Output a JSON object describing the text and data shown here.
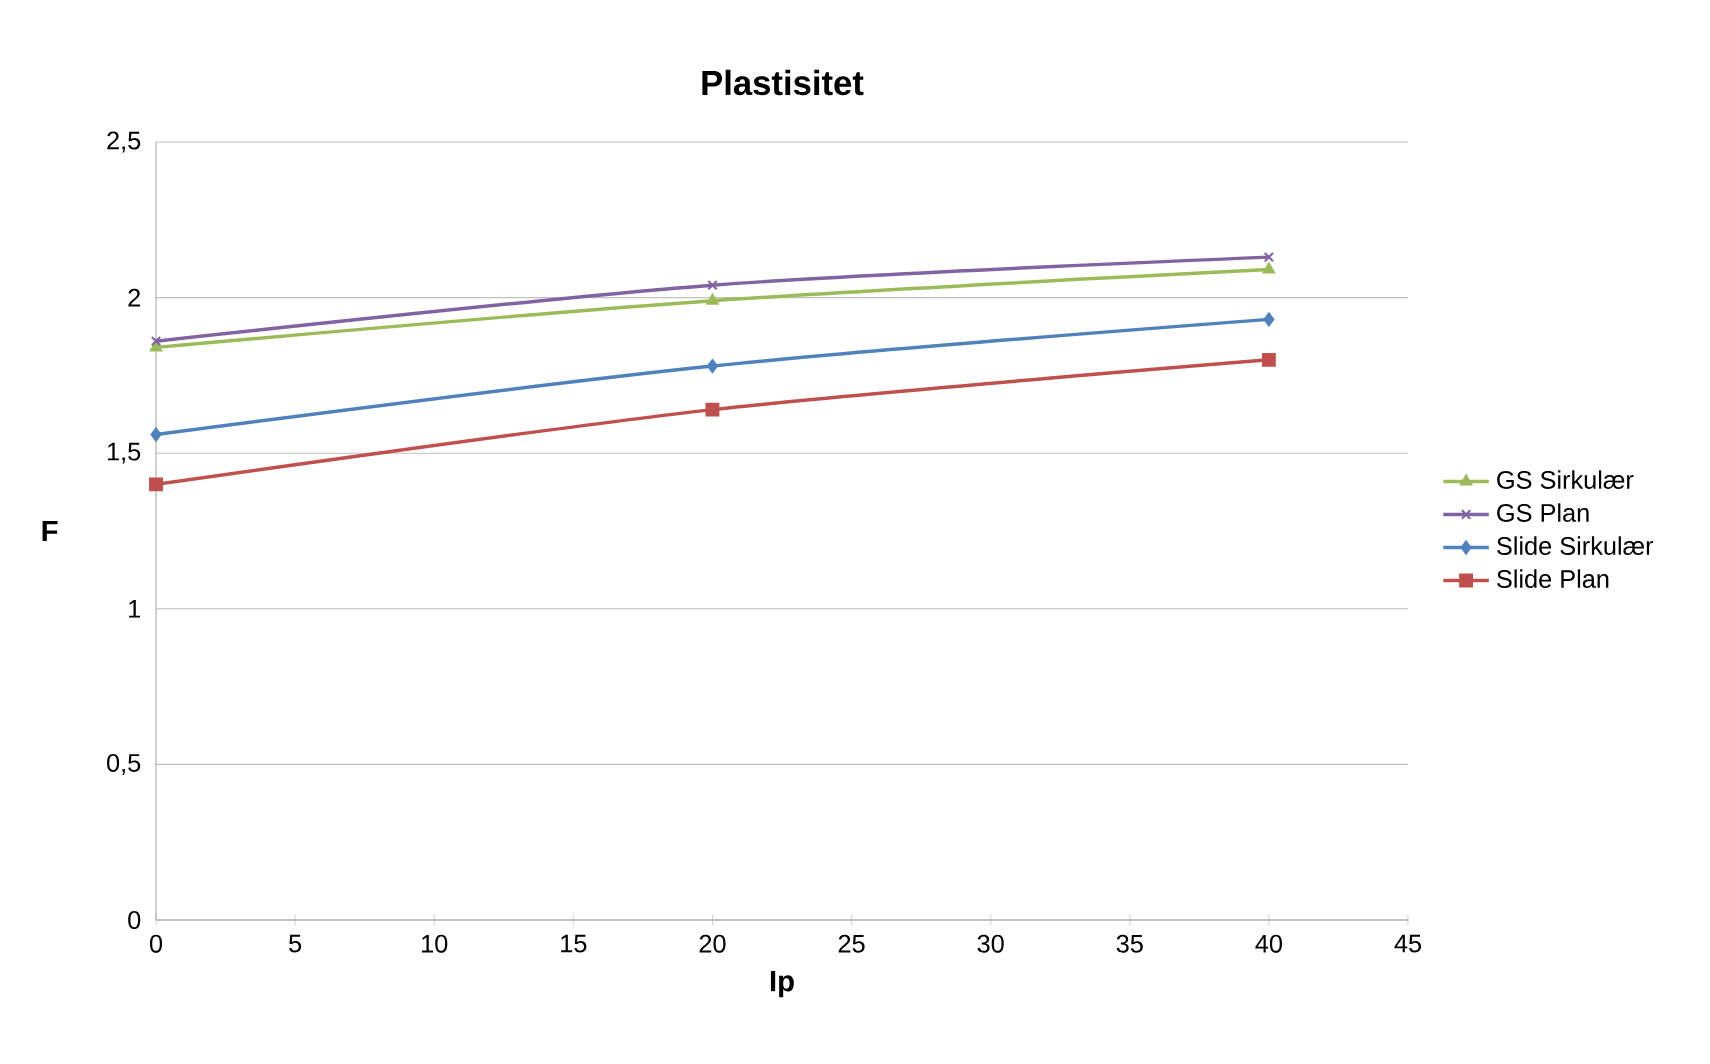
{
  "chart_data": {
    "type": "line",
    "title": "Plastisitet",
    "xlabel": "Ip",
    "ylabel": "F",
    "xlim": [
      0,
      45
    ],
    "xticks": [
      0,
      5,
      10,
      15,
      20,
      25,
      30,
      35,
      40,
      45
    ],
    "ylim": [
      0,
      2.5
    ],
    "yticks": [
      0,
      {
        "value": 0.5,
        "label": "0,5"
      },
      1,
      {
        "value": 1.5,
        "label": "1,5"
      },
      2,
      {
        "value": 2.5,
        "label": "2,5"
      }
    ],
    "grid": "y",
    "legend": "right",
    "x": [
      0,
      20,
      40
    ],
    "series": [
      {
        "name": "GS Sirkulær",
        "color": "#9bbb59",
        "marker": "triangle",
        "values": [
          1.84,
          1.99,
          2.09
        ]
      },
      {
        "name": "GS Plan",
        "color": "#8064a2",
        "marker": "cross",
        "values": [
          1.86,
          2.04,
          2.13
        ]
      },
      {
        "name": "Slide Sirkulær",
        "color": "#4f81bd",
        "marker": "diamond",
        "values": [
          1.56,
          1.78,
          1.93
        ]
      },
      {
        "name": "Slide Plan",
        "color": "#c0504d",
        "marker": "square",
        "values": [
          1.4,
          1.64,
          1.8
        ]
      }
    ]
  }
}
